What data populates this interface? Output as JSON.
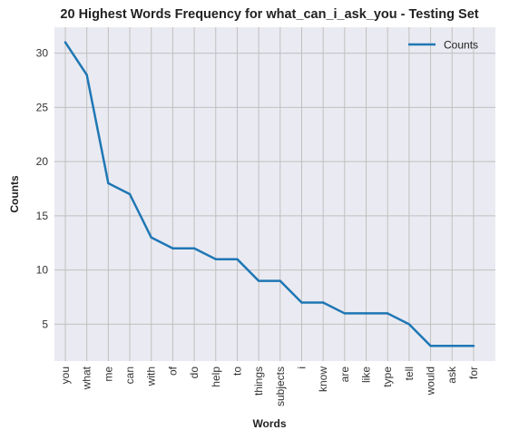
{
  "chart_data": {
    "type": "line",
    "title": "20 Highest Words Frequency for what_can_i_ask_you - Testing Set",
    "xlabel": "Words",
    "ylabel": "Counts",
    "categories": [
      "you",
      "what",
      "me",
      "can",
      "with",
      "of",
      "do",
      "help",
      "to",
      "things",
      "subjects",
      "i",
      "know",
      "are",
      "like",
      "type",
      "tell",
      "would",
      "ask",
      "for"
    ],
    "series": [
      {
        "name": "Counts",
        "values": [
          31,
          28,
          18,
          17,
          13,
          12,
          12,
          11,
          11,
          9,
          9,
          7,
          7,
          6,
          6,
          6,
          5,
          3,
          3,
          3
        ]
      }
    ],
    "yticks": [
      5,
      10,
      15,
      20,
      25,
      30
    ],
    "ylim": [
      1.6,
      32.4
    ],
    "grid": true,
    "legend": "top-right",
    "colors": {
      "background": "#eaeaf2",
      "grid": "#c0c0c0",
      "line": "#1f77b4"
    }
  }
}
